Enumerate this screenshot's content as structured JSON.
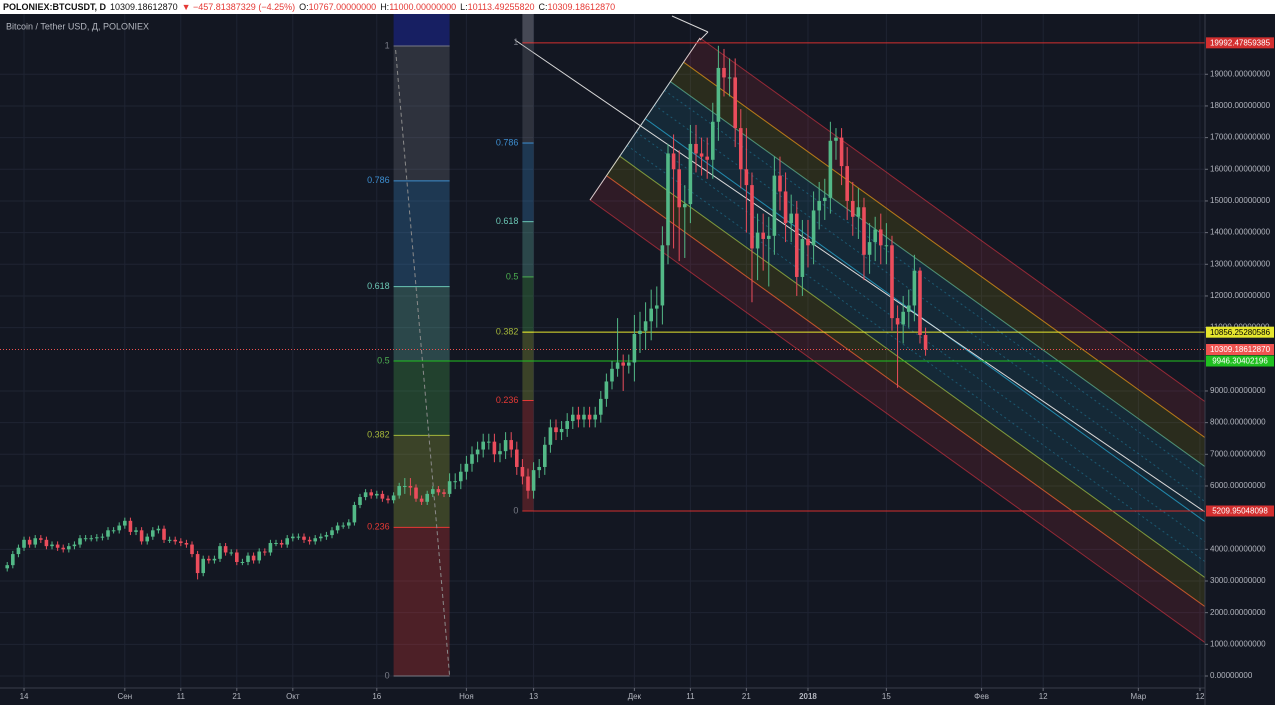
{
  "header": {
    "symbol": "POLONIEX:BTCUSDT, D",
    "last": "10309.18612870",
    "change": "▼ −457.81387329 (−4.25%)",
    "ohlc": [
      {
        "key": "O:",
        "value": "10767.00000000"
      },
      {
        "key": "H:",
        "value": "11000.00000000"
      },
      {
        "key": "L:",
        "value": "10113.49255820"
      },
      {
        "key": "C:",
        "value": "10309.18612870"
      }
    ]
  },
  "chart_data": {
    "type": "candlestick",
    "title": "Bitcoin / Tether USD, Д, POLONIEX",
    "up_color": "#53b987",
    "down_color": "#eb4d5c",
    "grid": true,
    "open": [
      3400,
      3500,
      3850,
      4050,
      4300,
      4150,
      4350,
      4300,
      4100,
      4150,
      4050,
      4000,
      4100,
      4150,
      4350,
      4350,
      4350,
      4380,
      4400,
      4600,
      4600,
      4750,
      4900,
      4550,
      4600,
      4250,
      4400,
      4600,
      4650,
      4300,
      4300,
      4250,
      4200,
      4150,
      3850,
      3250,
      3700,
      3650,
      3700,
      4100,
      3900,
      3900,
      3600,
      3600,
      3800,
      3650,
      3930,
      3900,
      4200,
      4200,
      4150,
      4350,
      4400,
      4400,
      4300,
      4250,
      4350,
      4400,
      4450,
      4600,
      4750,
      4750,
      4850,
      5400,
      5650,
      5800,
      5700,
      5750,
      5600,
      5550,
      5700,
      6000,
      6000,
      5950,
      5600,
      5500,
      5750,
      5900,
      5800,
      5750,
      6150,
      6150,
      6450,
      6700,
      7000,
      7150,
      7400,
      7400,
      7000,
      7100,
      7450,
      7150,
      6600,
      6300,
      5850,
      6500,
      6600,
      7300,
      7850,
      7700,
      7800,
      8050,
      8250,
      8100,
      8250,
      8100,
      8250,
      8750,
      9300,
      9700,
      9900,
      9800,
      9900,
      10800,
      10900,
      11200,
      11600,
      11700,
      13600,
      16500,
      16000,
      14800,
      14900,
      16800,
      16500,
      16400,
      16300,
      17500,
      19200,
      18900,
      18900,
      17300,
      16000,
      15500,
      13500,
      14000,
      13800,
      13900,
      15800,
      15300,
      14300,
      14600,
      12600,
      13800,
      13600,
      14700,
      15000,
      15100,
      16900,
      17000,
      16100,
      15000,
      14500,
      14800,
      13300,
      13700,
      14100,
      13600,
      13600,
      11300,
      11100,
      11500,
      11700,
      12800,
      10767
    ],
    "high": [
      3600,
      3950,
      4150,
      4400,
      4400,
      4450,
      4450,
      4400,
      4250,
      4250,
      4150,
      4200,
      4250,
      4450,
      4450,
      4450,
      4480,
      4500,
      4700,
      4700,
      4850,
      5000,
      5000,
      4700,
      4700,
      4500,
      4700,
      4750,
      4750,
      4400,
      4400,
      4350,
      4300,
      4250,
      3950,
      3800,
      3800,
      3800,
      4200,
      4200,
      4000,
      4000,
      3700,
      3900,
      3900,
      4030,
      4030,
      4300,
      4300,
      4300,
      4450,
      4500,
      4500,
      4500,
      4400,
      4450,
      4500,
      4550,
      4700,
      4850,
      4850,
      4950,
      5500,
      5750,
      5900,
      5900,
      5850,
      5850,
      5700,
      5800,
      6100,
      6250,
      6250,
      6050,
      5700,
      5850,
      6000,
      6000,
      5900,
      6400,
      6400,
      6700,
      6950,
      7250,
      7400,
      7650,
      7650,
      7650,
      7350,
      7700,
      7700,
      7400,
      6850,
      6550,
      6750,
      6850,
      7550,
      8100,
      8100,
      8050,
      8300,
      8500,
      8500,
      8500,
      8500,
      8500,
      9000,
      9550,
      9950,
      11300,
      10150,
      10150,
      11400,
      11500,
      11800,
      12200,
      12300,
      14200,
      16800,
      17100,
      16600,
      15500,
      17400,
      17400,
      17000,
      17000,
      18100,
      19900,
      19800,
      19500,
      19500,
      17900,
      17300,
      15900,
      14600,
      14600,
      14500,
      16400,
      16400,
      15900,
      15200,
      15000,
      14400,
      14400,
      15300,
      15600,
      15700,
      17500,
      17300,
      17300,
      16700,
      15600,
      15400,
      15100,
      14300,
      14500,
      14600,
      14300,
      13900,
      11700,
      12000,
      12200,
      13300,
      12900,
      11000
    ],
    "low": [
      3300,
      3400,
      3750,
      3950,
      4050,
      4050,
      4200,
      4000,
      4000,
      3950,
      3900,
      3900,
      4000,
      4050,
      4250,
      4250,
      4250,
      4280,
      4300,
      4500,
      4500,
      4650,
      4450,
      4450,
      4150,
      4150,
      4300,
      4500,
      4200,
      4200,
      4150,
      4100,
      4050,
      3750,
      3050,
      3150,
      3550,
      3550,
      3600,
      3800,
      3800,
      3500,
      3500,
      3500,
      3550,
      3550,
      3800,
      3800,
      4100,
      4050,
      4050,
      4250,
      4300,
      4200,
      4150,
      4150,
      4250,
      4300,
      4350,
      4500,
      4650,
      4650,
      4750,
      5300,
      5550,
      5600,
      5600,
      5500,
      5450,
      5450,
      5600,
      5750,
      5700,
      5500,
      5400,
      5400,
      5650,
      5700,
      5650,
      5650,
      5900,
      5900,
      6200,
      6450,
      6750,
      6900,
      7150,
      6750,
      6750,
      6850,
      6900,
      6350,
      6050,
      5600,
      5600,
      6250,
      6350,
      7050,
      7450,
      7450,
      7550,
      7800,
      7850,
      7850,
      7850,
      7850,
      8000,
      8500,
      9050,
      9450,
      9000,
      9550,
      9300,
      10200,
      10300,
      10600,
      11000,
      11100,
      13000,
      13500,
      13100,
      13200,
      14300,
      15900,
      15800,
      15700,
      15700,
      16900,
      18300,
      18300,
      16700,
      15400,
      14000,
      11800,
      12500,
      12800,
      12300,
      13300,
      14700,
      13700,
      13700,
      12000,
      12000,
      12900,
      13000,
      14100,
      14400,
      14600,
      16300,
      15500,
      14400,
      13900,
      13800,
      12500,
      12700,
      13100,
      13000,
      13000,
      10900,
      9100,
      10500,
      11000,
      11200,
      10500,
      10113.4925582
    ],
    "close": [
      3500,
      3850,
      4050,
      4300,
      4150,
      4350,
      4300,
      4100,
      4150,
      4050,
      4000,
      4100,
      4150,
      4350,
      4350,
      4350,
      4380,
      4400,
      4600,
      4600,
      4750,
      4900,
      4550,
      4600,
      4250,
      4400,
      4600,
      4650,
      4300,
      4300,
      4250,
      4200,
      4150,
      3850,
      3250,
      3700,
      3650,
      3700,
      4100,
      3900,
      3900,
      3600,
      3600,
      3800,
      3650,
      3930,
      3900,
      4200,
      4200,
      4150,
      4350,
      4400,
      4400,
      4300,
      4250,
      4350,
      4400,
      4450,
      4600,
      4750,
      4750,
      4850,
      5400,
      5650,
      5800,
      5700,
      5750,
      5600,
      5550,
      5700,
      6000,
      6000,
      5950,
      5600,
      5500,
      5750,
      5900,
      5800,
      5750,
      6150,
      6150,
      6450,
      6700,
      7000,
      7150,
      7400,
      7400,
      7000,
      7100,
      7450,
      7150,
      6600,
      6300,
      5850,
      6500,
      6600,
      7300,
      7850,
      7700,
      7800,
      8050,
      8250,
      8100,
      8250,
      8100,
      8250,
      8750,
      9300,
      9700,
      9900,
      9800,
      9900,
      10800,
      10900,
      11200,
      11600,
      11700,
      13600,
      16500,
      16000,
      14800,
      14900,
      16800,
      16500,
      16400,
      16300,
      17500,
      19200,
      18900,
      18900,
      17300,
      16000,
      15500,
      13500,
      14000,
      13800,
      13900,
      15800,
      15300,
      14300,
      14600,
      12600,
      13800,
      13600,
      14700,
      15000,
      15100,
      16900,
      17000,
      16100,
      15000,
      14500,
      14800,
      13300,
      13700,
      14100,
      13600,
      13600,
      11300,
      11100,
      11500,
      11700,
      12800,
      10767,
      10309.1861287
    ],
    "xlim": [
      -1.29,
      213.9
    ],
    "xticks": [
      {
        "value": 3,
        "label": "14"
      },
      {
        "value": 21,
        "label": "Сен"
      },
      {
        "value": 31,
        "label": "11"
      },
      {
        "value": 41,
        "label": "21"
      },
      {
        "value": 51,
        "label": "Окт"
      },
      {
        "value": 66,
        "label": "16"
      },
      {
        "value": 82,
        "label": "Ноя"
      },
      {
        "value": 94,
        "label": "13"
      },
      {
        "value": 112,
        "label": "Дек"
      },
      {
        "value": 122,
        "label": "11"
      },
      {
        "value": 132,
        "label": "21"
      },
      {
        "value": 143,
        "label": "2018"
      },
      {
        "value": 157,
        "label": "15"
      },
      {
        "value": 174,
        "label": "Фев"
      },
      {
        "value": 185,
        "label": "12"
      },
      {
        "value": 202,
        "label": "Мар"
      },
      {
        "value": 213,
        "label": "12"
      }
    ],
    "ylim": [
      -379,
      20903
    ],
    "yticks": [
      {
        "value": 19000,
        "label": "19000.00000000"
      },
      {
        "value": 18000,
        "label": "18000.00000000"
      },
      {
        "value": 17000,
        "label": "17000.00000000"
      },
      {
        "value": 16000,
        "label": "16000.00000000"
      },
      {
        "value": 15000,
        "label": "15000.00000000"
      },
      {
        "value": 14000,
        "label": "14000.00000000"
      },
      {
        "value": 13000,
        "label": "13000.00000000"
      },
      {
        "value": 12000,
        "label": "12000.00000000"
      },
      {
        "value": 11000,
        "label": "11000.00000000"
      },
      {
        "value": 9000,
        "label": "9000.00000000"
      },
      {
        "value": 8000,
        "label": "8000.00000000"
      },
      {
        "value": 7000,
        "label": "7000.00000000"
      },
      {
        "value": 6000,
        "label": "6000.00000000"
      },
      {
        "value": 4000,
        "label": "4000.00000000"
      },
      {
        "value": 3000,
        "label": "3000.00000000"
      },
      {
        "value": 2000,
        "label": "2000.00000000"
      },
      {
        "value": 1000,
        "label": "1000.00000000"
      },
      {
        "value": 0,
        "label": "0.00000000"
      }
    ],
    "fibs": [
      {
        "x": [
          69,
          79
        ],
        "high": 19892.60804392,
        "low": 0,
        "levels": [
          1,
          0.786,
          0.618,
          0.5,
          0.382,
          0.236,
          0
        ],
        "colors": [
          "#787b86",
          "#3d8ed0",
          "#6bc7b5",
          "#4caf50",
          "#a5b73a",
          "#e53935",
          "#787b86"
        ]
      },
      {
        "x": [
          92,
          94
        ],
        "high": 19992.47859385,
        "low": 5209.95048098,
        "levels": [
          1,
          0.786,
          0.618,
          0.5,
          0.382,
          0.236,
          0
        ],
        "colors": [
          "#787b86",
          "#3d8ed0",
          "#6bc7b5",
          "#4caf50",
          "#a5b73a",
          "#e53935",
          "#787b86"
        ]
      }
    ],
    "price_lines": [
      {
        "value": 19992.47859385,
        "color": "#d32f2f",
        "from": 92
      },
      {
        "value": 10856.25280586,
        "color": "#e6e62e",
        "from": 92
      },
      {
        "value": 10309.1861287,
        "label": "10309.18612870",
        "color": "#ef5350",
        "dotted": true
      },
      {
        "value": 9946.30402196,
        "color": "#20c020",
        "from": 69
      },
      {
        "value": 5209.95048098,
        "color": "#d32f2f",
        "from": 92
      }
    ]
  }
}
